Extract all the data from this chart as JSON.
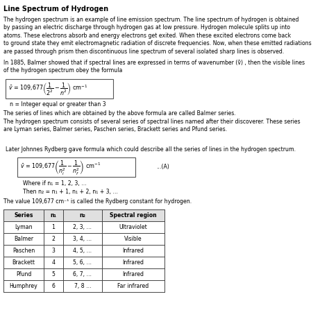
{
  "title": "Line Spectrum of Hydrogen",
  "bg_color": "#ffffff",
  "text_color": "#000000",
  "para1": "The hydrogen spectrum is an example of line emission spectrum. The line spectrum of hydrogen is obtained\nby passing an electric discharge through hydrogen gas at low pressure. Hydrogen molecule splits up into\natoms. These electrons absorb and energy electrons get exited. When these excited electrons come back\nto ground state they emit electromagnetic radiation of discrete frequencies. Now, when these emitted radiations\nare passed through prism then discontinuous line spectrum of several isolated sharp lines is observed.",
  "para2": "In 1885, Balmer showed that if spectral lines are expressed in terms of wavenumber (ṽ) , then the visible lines\nof the hydrogen spectrum obey the formula",
  "n_note": "n = Integer equal or greater than 3",
  "para3": "The series of lines which are obtained by the above formula are called Balmer series.",
  "para4": "The hydrogen spectrum consists of several series of spectral lines named after their discoverer. These series\nare Lyman series, Balmer series, Paschen series, Brackett series and Pfund series.",
  "para5": "Later Johnnes Rydberg gave formula which could describe all the series of lines in the hydrogen spectrum.",
  "where_line": "Where if n₁ = 1, 2, 3, ...",
  "then_line": "Then n₂ = n₁ + 1, n₁ + 2, n₁ + 3, ...",
  "rydberg_note": "The value 109,677 cm⁻¹ is called the Rydberg constant for hydrogen.",
  "table_headers": [
    "Series",
    "n₁",
    "n₂",
    "Spectral region"
  ],
  "table_rows": [
    [
      "Lyman",
      "1",
      "2, 3, ...",
      "Ultraviolet"
    ],
    [
      "Balmer",
      "2",
      "3, 4, ...",
      "Visible"
    ],
    [
      "Paschen",
      "3",
      "4, 5, ...",
      "Infrared"
    ],
    [
      "Brackett",
      "4",
      "5, 6, ...",
      "Infrared"
    ],
    [
      "Pfund",
      "5",
      "6, 7, ...",
      "Infrared"
    ],
    [
      "Humphrey",
      "6",
      "7, 8 ...",
      "Far infrared"
    ]
  ],
  "font_size_title": 7.0,
  "font_size_body": 5.6,
  "font_size_formula": 5.8,
  "font_size_table": 5.6
}
